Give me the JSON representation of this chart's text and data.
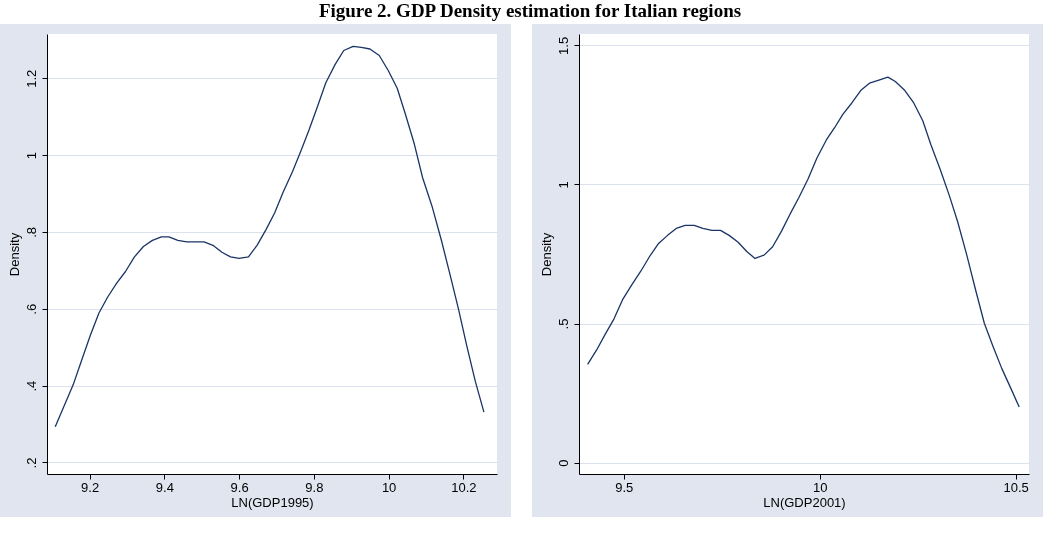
{
  "chart_data": [
    {
      "type": "line",
      "title": "Figure 2. GDP Density estimation for Italian regions",
      "xlabel": "LN(GDP1995)",
      "ylabel": "Density",
      "grid": "y",
      "marker": "none",
      "line_style": "solid",
      "xlim": [
        9.086,
        10.29
      ],
      "ylim": [
        0.17,
        1.315
      ],
      "xticks": [
        9.2,
        9.4,
        9.6,
        9.8,
        10,
        10.2
      ],
      "yticks": [
        {
          "value": 0.2,
          "label": ".2"
        },
        {
          "value": 0.4,
          "label": ".4"
        },
        {
          "value": 0.6,
          "label": ".6"
        },
        {
          "value": 0.8,
          "label": ".8"
        },
        1,
        1.2
      ],
      "x": [
        9.108,
        9.156,
        9.178,
        9.202,
        9.225,
        9.248,
        9.272,
        9.296,
        9.32,
        9.344,
        9.368,
        9.392,
        9.412,
        9.436,
        9.46,
        9.506,
        9.53,
        9.554,
        9.577,
        9.6,
        9.625,
        9.648,
        9.672,
        9.695,
        9.718,
        9.743,
        9.765,
        9.787,
        9.81,
        9.832,
        9.857,
        9.88,
        9.905,
        9.927,
        9.95,
        9.975,
        9.999,
        10.023,
        10.045,
        10.069,
        10.091,
        10.117,
        10.141,
        10.165,
        10.187,
        10.209,
        10.232,
        10.255
      ],
      "series": [
        {
          "color": "#1a3466",
          "values": [
            0.293,
            0.402,
            0.464,
            0.531,
            0.589,
            0.63,
            0.666,
            0.697,
            0.735,
            0.762,
            0.778,
            0.787,
            0.787,
            0.778,
            0.774,
            0.774,
            0.765,
            0.747,
            0.735,
            0.731,
            0.735,
            0.765,
            0.806,
            0.849,
            0.904,
            0.957,
            1.01,
            1.065,
            1.127,
            1.188,
            1.236,
            1.272,
            1.283,
            1.28,
            1.276,
            1.259,
            1.22,
            1.174,
            1.106,
            1.028,
            0.941,
            0.864,
            0.779,
            0.686,
            0.599,
            0.504,
            0.411,
            0.331
          ]
        }
      ]
    },
    {
      "type": "line",
      "xlabel": "LN(GDP2001)",
      "ylabel": "Density",
      "grid": "y",
      "marker": "none",
      "line_style": "solid",
      "xlim": [
        9.386,
        10.534
      ],
      "ylim": [
        -0.041,
        1.541
      ],
      "xticks": [
        9.5,
        10,
        10.5
      ],
      "yticks": [
        0,
        {
          "value": 0.5,
          "label": ".5"
        },
        1,
        1.5
      ],
      "x": [
        9.408,
        9.431,
        9.453,
        9.475,
        9.498,
        9.521,
        9.544,
        9.566,
        9.589,
        9.612,
        9.634,
        9.657,
        9.68,
        9.702,
        9.725,
        9.747,
        9.769,
        9.792,
        9.814,
        9.835,
        9.858,
        9.88,
        9.903,
        9.925,
        9.947,
        9.97,
        9.993,
        10.017,
        10.038,
        10.059,
        10.082,
        10.106,
        10.127,
        10.151,
        10.174,
        10.193,
        10.216,
        10.24,
        10.263,
        10.284,
        10.308,
        10.331,
        10.352,
        10.375,
        10.397,
        10.42,
        10.443,
        10.465,
        10.488,
        10.509
      ],
      "series": [
        {
          "color": "#1a3466",
          "values": [
            0.353,
            0.405,
            0.462,
            0.516,
            0.588,
            0.64,
            0.689,
            0.741,
            0.788,
            0.817,
            0.842,
            0.853,
            0.853,
            0.842,
            0.835,
            0.835,
            0.817,
            0.792,
            0.759,
            0.734,
            0.746,
            0.776,
            0.833,
            0.895,
            0.953,
            1.019,
            1.095,
            1.16,
            1.204,
            1.252,
            1.293,
            1.34,
            1.364,
            1.375,
            1.386,
            1.37,
            1.34,
            1.293,
            1.229,
            1.142,
            1.052,
            0.959,
            0.866,
            0.748,
            0.625,
            0.501,
            0.415,
            0.337,
            0.266,
            0.2
          ]
        }
      ]
    }
  ]
}
